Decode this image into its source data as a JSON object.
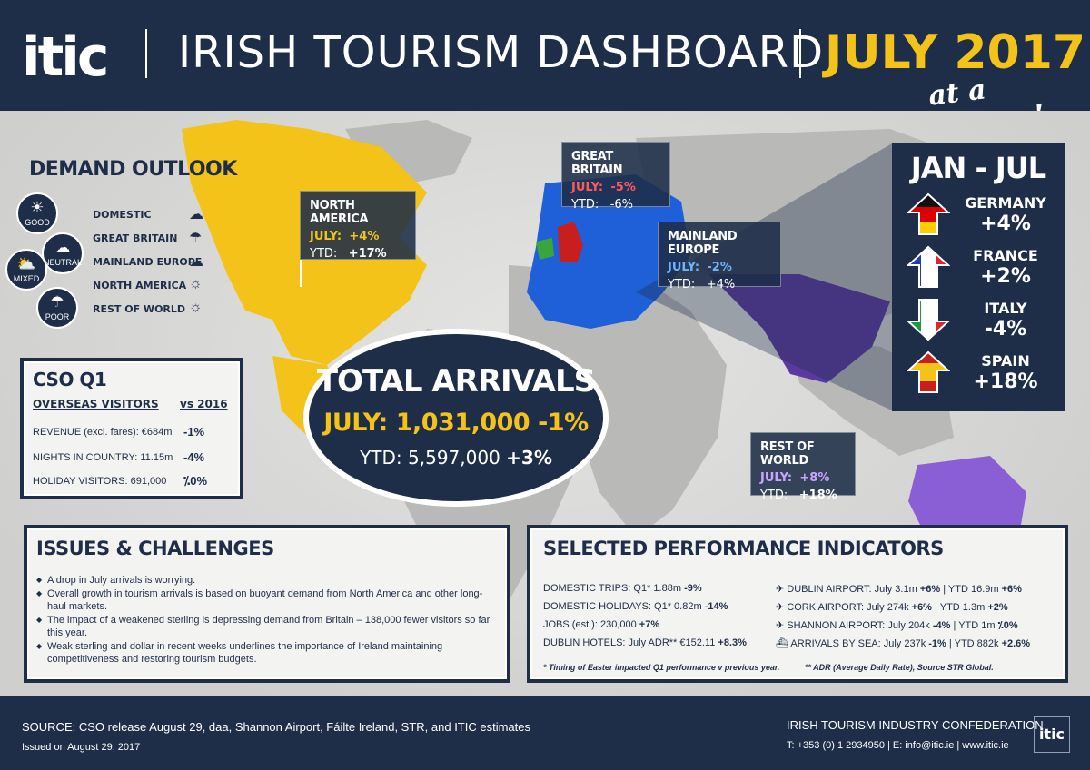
{
  "header": {
    "logo_text": "itic",
    "title": "IRISH TOURISM DASHBOARD",
    "date": "JULY 2017",
    "tagline": "at a glance!"
  },
  "demand_outlook": {
    "title": "DEMAND OUTLOOK",
    "legend": [
      {
        "label": "GOOD",
        "icon": "sun-icon"
      },
      {
        "label": "NEUTRAL",
        "icon": "cloud-icon"
      },
      {
        "label": "MIXED",
        "icon": "sun-cloud-icon"
      },
      {
        "label": "POOR",
        "icon": "rain-cloud-icon"
      }
    ],
    "markets": [
      {
        "name": "DOMESTIC",
        "icon": "cloud-icon"
      },
      {
        "name": "GREAT BRITAIN",
        "icon": "rain-cloud-icon"
      },
      {
        "name": "MAINLAND EUROPE",
        "icon": "cloud-icon"
      },
      {
        "name": "NORTH AMERICA",
        "icon": "sun-icon"
      },
      {
        "name": "REST OF WORLD",
        "icon": "sun-icon"
      }
    ]
  },
  "regions": {
    "north_america": {
      "title": "NORTH AMERICA",
      "july_label": "JULY:",
      "july": "+4%",
      "ytd_label": "YTD:",
      "ytd": "+17%"
    },
    "great_britain": {
      "title": "GREAT BRITAIN",
      "july_label": "JULY:",
      "july": "-5%",
      "ytd_label": "YTD:",
      "ytd": "-6%"
    },
    "mainland_europe": {
      "title": "MAINLAND EUROPE",
      "july_label": "JULY:",
      "july": "-2%",
      "ytd_label": "YTD:",
      "ytd": "+4%"
    },
    "rest_of_world": {
      "title": "REST OF WORLD",
      "july_label": "JULY:",
      "july": "+8%",
      "ytd_label": "YTD:",
      "ytd": "+18%"
    }
  },
  "jan_jul": {
    "title": "JAN - JUL",
    "countries": [
      {
        "name": "GERMANY",
        "value": "+4%",
        "direction": "up"
      },
      {
        "name": "FRANCE",
        "value": "+2%",
        "direction": "up"
      },
      {
        "name": "ITALY",
        "value": "-4%",
        "direction": "down"
      },
      {
        "name": "SPAIN",
        "value": "+18%",
        "direction": "up"
      }
    ]
  },
  "total_arrivals": {
    "title": "TOTAL ARRIVALS",
    "july": "JULY: 1,031,000 -1%",
    "ytd_text": "YTD: 5,597,000",
    "ytd_change": "+3%"
  },
  "cso": {
    "title": "CSO Q1",
    "subtitle": "OVERSEAS VISITORS",
    "vs": "vs 2016",
    "rows": [
      {
        "label": "REVENUE (excl. fares): €684m",
        "value": "-1%"
      },
      {
        "label": "NIGHTS IN COUNTRY: 11.15m",
        "value": "-4%"
      },
      {
        "label": "HOLIDAY VISITORS: 691,000",
        "value": "⁒0%"
      }
    ]
  },
  "issues": {
    "title": "ISSUES & CHALLENGES",
    "items": [
      "A drop in July arrivals is worrying.",
      "Overall growth in tourism arrivals is based on buoyant demand from North America and other long-haul markets.",
      "The impact of a weakened sterling is depressing demand from Britain – 138,000 fewer visitors so far this year.",
      "Weak sterling and dollar in recent weeks underlines the importance of Ireland maintaining competitiveness and restoring tourism budgets."
    ]
  },
  "spi": {
    "title": "SELECTED PERFORMANCE INDICATORS",
    "left": [
      {
        "text": "DOMESTIC TRIPS: Q1* 1.88m",
        "change": "-9%"
      },
      {
        "text": "DOMESTIC HOLIDAYS: Q1* 0.82m",
        "change": "-14%"
      },
      {
        "text": "JOBS (est.): 230,000",
        "change": "+7%"
      },
      {
        "text": "DUBLIN HOTELS: July ADR** €152.11",
        "change": "+8.3%"
      }
    ],
    "right": [
      {
        "icon": "plane-icon",
        "text": "DUBLIN AIRPORT:  July 3.1m",
        "change": "+6%",
        "ytd": "|  YTD 16.9m",
        "ytd_change": "+6%"
      },
      {
        "icon": "plane-icon",
        "text": "CORK AIRPORT:  July 274k",
        "change": "+6%",
        "ytd": "|  YTD 1.3m",
        "ytd_change": "+2%"
      },
      {
        "icon": "plane-icon",
        "text": "SHANNON AIRPORT:  July 204k",
        "change": "-4%",
        "ytd": "|  YTD 1m",
        "ytd_change": "⁒0%"
      },
      {
        "icon": "ship-icon",
        "text": "ARRIVALS BY SEA: July 237k",
        "change": "-1%",
        "ytd": "|  YTD 882k",
        "ytd_change": "+2.6%"
      }
    ],
    "note1": "* Timing of Easter impacted Q1 performance v previous year.",
    "note2": "** ADR (Average Daily Rate), Source STR Global."
  },
  "footer": {
    "source": "SOURCE: CSO release August 29, daa, Shannon Airport, Fáilte Ireland, STR, and ITIC estimates",
    "issued": "Issued on August 29, 2017",
    "org": "IRISH TOURISM INDUSTRY CONFEDERATION",
    "contact": "T: +353 (0) 1 2934950 | E: info@itic.ie | www.itic.ie",
    "logo": "itic"
  },
  "colors": {
    "navy": "#1e2d48",
    "gold": "#f3c31a",
    "europe_blue": "#1f5fd8",
    "rest_purple": "#5b3aa0",
    "ireland_green": "#3aa53a",
    "britain_red": "#c81e1e"
  }
}
